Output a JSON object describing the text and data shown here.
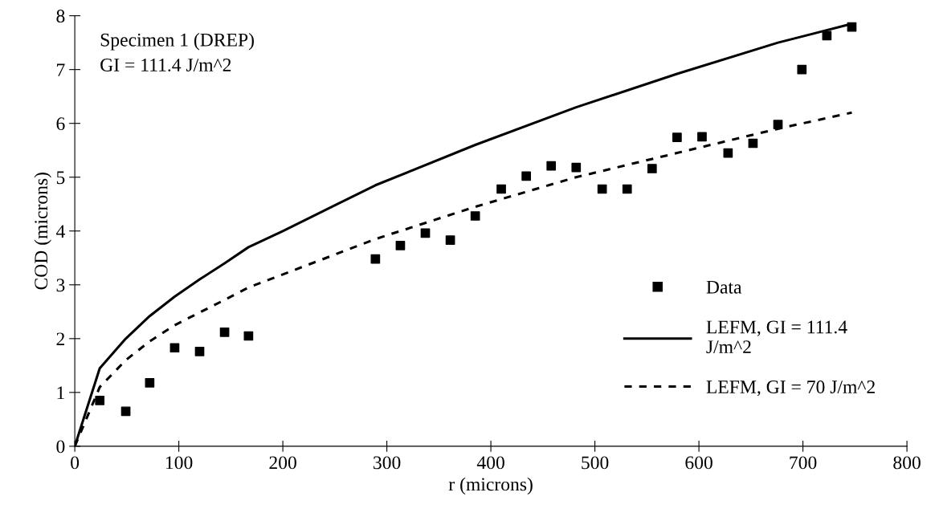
{
  "chart_data": {
    "type": "scatter",
    "xlabel": "r (microns)",
    "ylabel": "COD (microns)",
    "annotations": [
      "Specimen 1 (DREP)\nGI = 111.4 J/m^2"
    ],
    "series": [
      {
        "name": "Data",
        "color": "#000000",
        "marker": "square",
        "x": [
          24,
          49,
          72,
          96,
          120,
          144,
          167,
          289,
          313,
          337,
          361,
          385,
          410,
          434,
          458,
          482,
          507,
          531,
          555,
          579,
          603,
          628,
          652,
          676,
          699,
          723,
          747
        ],
        "values": [
          0.85,
          0.65,
          1.18,
          1.83,
          1.76,
          2.12,
          2.05,
          3.48,
          3.73,
          3.96,
          3.83,
          4.28,
          4.78,
          5.02,
          5.21,
          5.18,
          4.78,
          4.78,
          5.16,
          5.74,
          5.75,
          5.45,
          5.63,
          5.98,
          7.0,
          7.63,
          7.79
        ]
      },
      {
        "name": "LEFM, GI = 111.4\nJ/m^2",
        "type": "line",
        "color": "#000000",
        "line_style": "solid",
        "x": [
          0,
          24,
          49,
          72,
          96,
          120,
          144,
          167,
          200,
          289,
          385,
          482,
          579,
          676,
          747
        ],
        "values": [
          0,
          1.45,
          2.0,
          2.42,
          2.78,
          3.1,
          3.4,
          3.7,
          4.0,
          4.85,
          5.6,
          6.3,
          6.92,
          7.5,
          7.85
        ]
      },
      {
        "name": "LEFM, GI = 70 J/m^2",
        "type": "line",
        "color": "#000000",
        "line_style": "dashed",
        "x": [
          0,
          24,
          49,
          72,
          96,
          144,
          167,
          289,
          385,
          482,
          579,
          676,
          747
        ],
        "values": [
          0,
          1.1,
          1.6,
          1.95,
          2.25,
          2.72,
          2.95,
          3.85,
          4.45,
          5.0,
          5.45,
          5.9,
          6.2
        ]
      }
    ],
    "xlim": [
      0,
      800
    ],
    "xticks": [
      0,
      100,
      200,
      300,
      400,
      500,
      600,
      700,
      800
    ],
    "ylim": [
      0,
      8
    ],
    "yticks": [
      0,
      1,
      2,
      3,
      4,
      5,
      6,
      7,
      8
    ],
    "grid": false,
    "legend": "right"
  }
}
